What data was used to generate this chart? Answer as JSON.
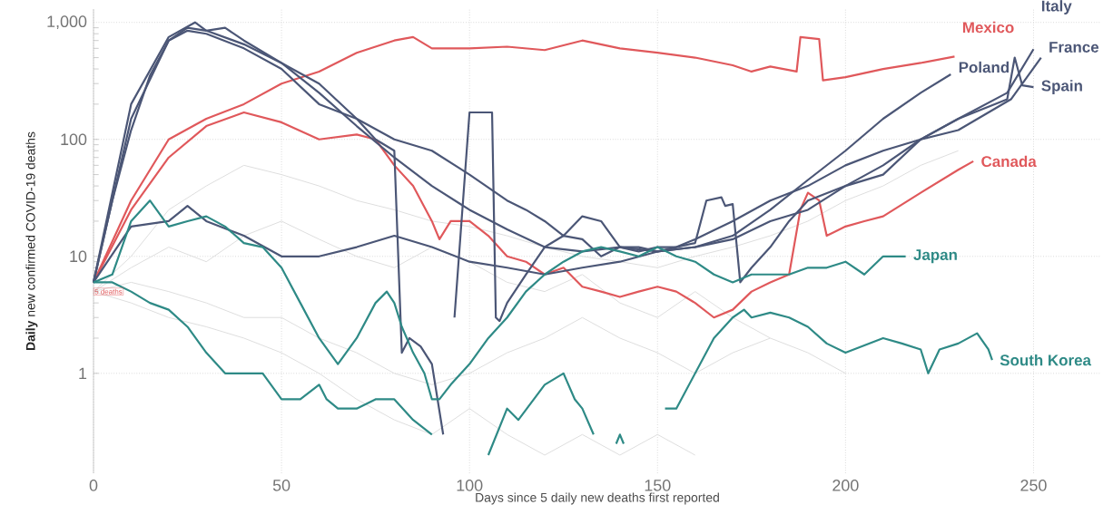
{
  "chart_data": {
    "type": "line",
    "xlabel": "Days since 5 daily new deaths first reported",
    "ylabel": "**Daily** new confirmed COVID-19 deaths",
    "log": "y",
    "grid": true,
    "legend": false,
    "marker": "none",
    "line_style": "solid",
    "xlim": [
      0,
      268
    ],
    "ylim": [
      0.14,
      1300
    ],
    "xticks": [
      0,
      50,
      100,
      150,
      200,
      250
    ],
    "yticks": [
      {
        "value": 1,
        "label": "1"
      },
      {
        "value": 10,
        "label": "10"
      },
      {
        "value": 100,
        "label": "100"
      },
      {
        "value": 1000,
        "label": "1,000"
      }
    ],
    "annotations": [
      {
        "text": "5 deaths",
        "x": 0,
        "y": 5
      }
    ],
    "series": [
      {
        "color": "#dedede",
        "x": [
          0,
          10,
          20,
          30,
          40,
          50,
          60,
          70,
          80,
          90,
          100,
          110,
          120,
          130,
          140,
          150,
          160,
          170,
          180
        ],
        "values": [
          5,
          8,
          12,
          9,
          15,
          20,
          14,
          10,
          8,
          12,
          9,
          6,
          5,
          7,
          4,
          3,
          5,
          3,
          2
        ]
      },
      {
        "color": "#dedede",
        "x": [
          0,
          10,
          20,
          30,
          40,
          50,
          60,
          70,
          80,
          90,
          100,
          110,
          120,
          130,
          140,
          150,
          160
        ],
        "values": [
          5,
          4,
          3,
          2.5,
          2,
          1.5,
          1,
          0.6,
          0.4,
          0.3,
          0.5,
          0.3,
          0.2,
          0.3,
          0.2,
          0.3,
          0.2
        ]
      },
      {
        "color": "#dedede",
        "x": [
          0,
          10,
          20,
          30,
          40,
          50,
          60,
          70,
          80,
          90,
          100,
          110,
          120,
          130,
          140,
          150,
          160,
          170,
          180,
          190,
          200,
          210,
          220,
          230
        ],
        "values": [
          5,
          10,
          25,
          40,
          60,
          50,
          40,
          30,
          25,
          20,
          18,
          15,
          12,
          10,
          9,
          8,
          10,
          12,
          15,
          20,
          30,
          40,
          60,
          80
        ]
      },
      {
        "color": "#dedede",
        "x": [
          0,
          10,
          20,
          30,
          40,
          50,
          60,
          70,
          80,
          90,
          100,
          110,
          120,
          130,
          140,
          150,
          160,
          170,
          180,
          190,
          200
        ],
        "values": [
          5,
          6,
          5,
          4,
          3,
          3,
          2,
          1.5,
          1,
          0.8,
          1,
          1.5,
          2,
          3,
          2,
          1.5,
          1,
          1.5,
          2,
          1.5,
          1
        ]
      },
      {
        "name": "Mexico",
        "color": "#e0585b",
        "x": [
          0,
          10,
          20,
          30,
          40,
          50,
          60,
          70,
          80,
          85,
          90,
          100,
          110,
          120,
          130,
          140,
          150,
          160,
          170,
          175,
          180,
          187,
          188,
          193,
          194,
          200,
          210,
          220,
          229
        ],
        "values": [
          6,
          30,
          100,
          150,
          200,
          300,
          380,
          550,
          700,
          750,
          600,
          600,
          620,
          580,
          700,
          600,
          550,
          500,
          430,
          380,
          420,
          380,
          750,
          720,
          320,
          340,
          400,
          450,
          510
        ]
      },
      {
        "name": "Canada",
        "color": "#e0585b",
        "x": [
          0,
          10,
          20,
          30,
          40,
          50,
          60,
          70,
          75,
          80,
          85,
          90,
          92,
          95,
          100,
          105,
          110,
          115,
          120,
          125,
          130,
          135,
          140,
          145,
          150,
          155,
          160,
          165,
          170,
          175,
          180,
          185,
          188,
          190,
          193,
          195,
          200,
          205,
          210,
          220,
          230,
          234
        ],
        "values": [
          6,
          25,
          70,
          130,
          170,
          140,
          100,
          110,
          100,
          60,
          40,
          20,
          14,
          20,
          20,
          15,
          10,
          9,
          7,
          8,
          5.5,
          5,
          4.5,
          5,
          5.5,
          5,
          4,
          3,
          3.5,
          5,
          6,
          7,
          25,
          35,
          30,
          15,
          18,
          20,
          22,
          35,
          55,
          65
        ]
      },
      {
        "name": "Italy",
        "color": "#4b5676",
        "x": [
          0,
          5,
          10,
          15,
          20,
          25,
          30,
          40,
          50,
          60,
          70,
          80,
          90,
          100,
          110,
          120,
          130,
          140,
          150,
          160,
          170,
          180,
          190,
          200,
          210,
          220,
          230,
          243,
          250
        ],
        "values": [
          6,
          30,
          120,
          350,
          700,
          900,
          850,
          650,
          450,
          250,
          130,
          70,
          40,
          25,
          17,
          12,
          11,
          12,
          11,
          12,
          14,
          20,
          25,
          40,
          60,
          100,
          150,
          250,
          590
        ]
      },
      {
        "name": "France",
        "color": "#4b5676",
        "x": [
          0,
          10,
          20,
          25,
          30,
          40,
          50,
          60,
          70,
          80,
          90,
          100,
          110,
          115,
          120,
          125,
          130,
          135,
          140,
          145,
          150,
          155,
          160,
          170,
          180,
          190,
          200,
          210,
          220,
          230,
          244,
          252
        ],
        "values": [
          6,
          150,
          700,
          850,
          800,
          600,
          400,
          200,
          150,
          100,
          80,
          50,
          30,
          25,
          20,
          15,
          22,
          20,
          12,
          12,
          11,
          12,
          14,
          20,
          30,
          40,
          60,
          80,
          100,
          120,
          220,
          500
        ]
      },
      {
        "name": "Spain",
        "color": "#4b5676",
        "x": [
          0,
          10,
          20,
          27,
          30,
          35,
          40,
          50,
          60,
          70,
          75,
          80,
          82,
          84,
          87,
          90,
          93,
          94,
          96,
          100,
          106,
          107,
          108,
          110,
          115,
          120,
          125,
          130,
          135,
          140,
          145,
          150,
          155,
          160,
          163,
          167,
          168,
          170,
          172,
          175,
          180,
          185,
          190,
          200,
          210,
          220,
          230,
          243,
          245,
          247,
          250
        ],
        "values": [
          6,
          200,
          750,
          1000,
          850,
          900,
          700,
          450,
          300,
          150,
          100,
          80,
          1.5,
          2,
          1.7,
          1.2,
          0.3,
          null,
          3,
          170,
          170,
          3,
          2.8,
          4,
          7,
          12,
          15,
          14,
          10,
          12,
          11,
          12,
          12,
          13,
          30,
          32,
          27,
          28,
          6,
          8,
          12,
          20,
          30,
          40,
          50,
          100,
          150,
          220,
          500,
          290,
          280
        ]
      },
      {
        "name": "Poland",
        "color": "#4b5676",
        "x": [
          0,
          10,
          20,
          25,
          30,
          40,
          50,
          60,
          70,
          80,
          90,
          100,
          110,
          120,
          130,
          140,
          150,
          160,
          170,
          180,
          190,
          200,
          210,
          220,
          228
        ],
        "values": [
          6,
          18,
          20,
          27,
          20,
          15,
          10,
          10,
          12,
          15,
          12,
          9,
          8,
          7,
          8,
          9,
          11,
          12,
          15,
          25,
          45,
          80,
          150,
          250,
          360
        ]
      },
      {
        "name": "Japan",
        "color": "#2e8a86",
        "x": [
          0,
          5,
          10,
          15,
          20,
          25,
          30,
          35,
          40,
          45,
          50,
          55,
          60,
          65,
          70,
          75,
          78,
          80,
          82,
          85,
          88,
          90,
          92,
          95,
          100,
          105,
          110,
          115,
          120,
          125,
          130,
          135,
          140,
          145,
          150,
          155,
          160,
          165,
          170,
          175,
          180,
          185,
          190,
          195,
          200,
          205,
          210,
          216
        ],
        "values": [
          6,
          7,
          20,
          30,
          18,
          20,
          22,
          18,
          13,
          12,
          8,
          4,
          2,
          1.2,
          2,
          4,
          5,
          4,
          2.5,
          1.5,
          1,
          0.6,
          0.6,
          0.8,
          1.2,
          2,
          3,
          5,
          7,
          9,
          11,
          12,
          11,
          10,
          12,
          10,
          9,
          7,
          6,
          7,
          7,
          7,
          8,
          8,
          9,
          7,
          10,
          10
        ]
      },
      {
        "name": "South Korea",
        "color": "#2e8a86",
        "x": [
          0,
          5,
          10,
          15,
          20,
          25,
          30,
          35,
          40,
          45,
          50,
          55,
          60,
          62,
          65,
          70,
          75,
          80,
          85,
          90,
          92,
          100,
          105,
          110,
          113,
          120,
          125,
          128,
          130,
          133,
          135,
          139,
          140,
          141,
          145,
          150,
          152,
          155,
          160,
          165,
          170,
          173,
          175,
          180,
          185,
          190,
          195,
          200,
          210,
          215,
          220,
          222,
          225,
          230,
          235,
          238,
          239
        ],
        "values": [
          6,
          6,
          5,
          4,
          3.5,
          2.5,
          1.5,
          1,
          1,
          1,
          0.6,
          0.6,
          0.8,
          0.6,
          0.5,
          0.5,
          0.6,
          0.6,
          0.4,
          0.3,
          null,
          null,
          0.2,
          0.5,
          0.4,
          0.8,
          1,
          0.6,
          0.5,
          0.3,
          null,
          0.25,
          0.3,
          0.25,
          null,
          null,
          0.5,
          0.5,
          1,
          2,
          3,
          3.5,
          3,
          3.3,
          3,
          2.5,
          1.8,
          1.5,
          2,
          1.8,
          1.6,
          1,
          1.6,
          1.8,
          2.2,
          1.6,
          1.3
        ]
      }
    ]
  }
}
